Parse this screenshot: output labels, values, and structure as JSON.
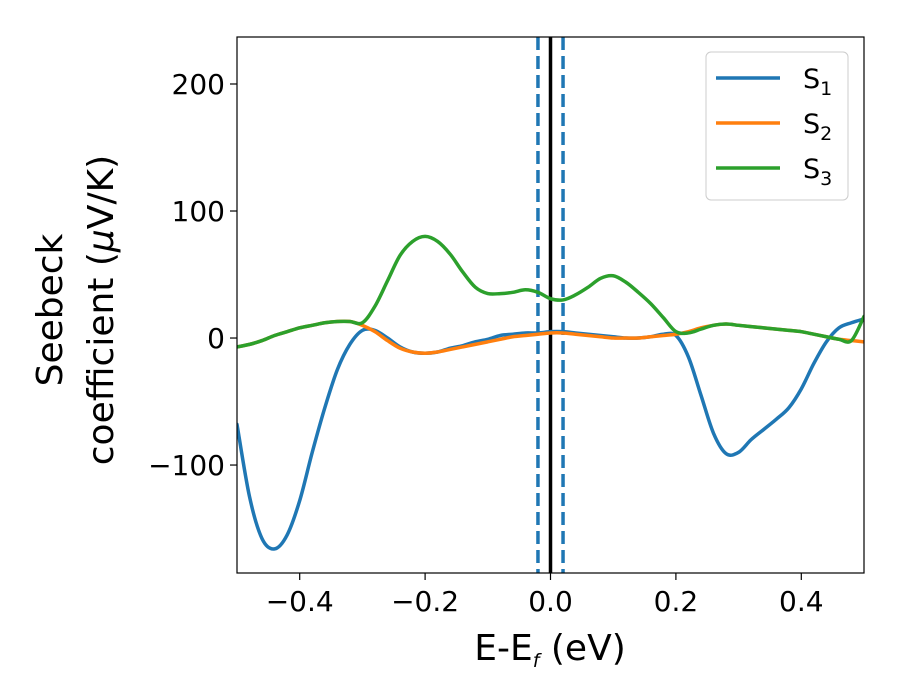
{
  "chart_data": {
    "type": "line",
    "title": "",
    "xlabel": {
      "base": "E-E",
      "sub": "f",
      "unit": " (eV)"
    },
    "ylabel": {
      "line1": "Seebeck",
      "line2_main": "coefficient  (",
      "line2_mu": "μ",
      "line2_unit": "V/K)"
    },
    "xlim": [
      -0.5,
      0.5
    ],
    "ylim": [
      -185,
      237
    ],
    "xticks": [
      -0.4,
      -0.2,
      0.0,
      0.2,
      0.4
    ],
    "xtick_labels": [
      "−0.4",
      "−0.2",
      "0.0",
      "0.2",
      "0.4"
    ],
    "yticks": [
      -100,
      0,
      100,
      200
    ],
    "ytick_labels": [
      "−100",
      "0",
      "100",
      "200"
    ],
    "grid": false,
    "legend_position": "top-right",
    "vlines": [
      {
        "x": 0.0,
        "color": "#000000",
        "style": "solid"
      },
      {
        "x": -0.02,
        "color": "#1f77b4",
        "style": "dashed"
      },
      {
        "x": 0.02,
        "color": "#1f77b4",
        "style": "dashed"
      }
    ],
    "series": [
      {
        "name": "S",
        "sub": "1",
        "color": "#1f77b4",
        "x": [
          -0.5,
          -0.48,
          -0.46,
          -0.44,
          -0.42,
          -0.4,
          -0.38,
          -0.36,
          -0.34,
          -0.32,
          -0.3,
          -0.28,
          -0.26,
          -0.24,
          -0.22,
          -0.2,
          -0.18,
          -0.16,
          -0.14,
          -0.12,
          -0.1,
          -0.08,
          -0.06,
          -0.04,
          -0.02,
          0.0,
          0.02,
          0.04,
          0.06,
          0.08,
          0.1,
          0.12,
          0.14,
          0.16,
          0.18,
          0.2,
          0.22,
          0.24,
          0.26,
          0.28,
          0.3,
          0.32,
          0.34,
          0.36,
          0.38,
          0.4,
          0.42,
          0.44,
          0.46,
          0.48,
          0.5
        ],
        "y": [
          -68,
          -125,
          -158,
          -166,
          -155,
          -128,
          -90,
          -55,
          -25,
          -5,
          6,
          6,
          0,
          -7,
          -11,
          -12,
          -11,
          -8,
          -6,
          -3,
          -1,
          2,
          3,
          4,
          4,
          5,
          5,
          4,
          3,
          2,
          1,
          0,
          0,
          1,
          3,
          2,
          -15,
          -45,
          -75,
          -91,
          -90,
          -80,
          -72,
          -64,
          -55,
          -40,
          -20,
          -3,
          8,
          12,
          15
        ]
      },
      {
        "name": "S",
        "sub": "2",
        "color": "#ff7f0e",
        "x": [
          -0.5,
          -0.48,
          -0.46,
          -0.44,
          -0.42,
          -0.4,
          -0.38,
          -0.36,
          -0.34,
          -0.32,
          -0.3,
          -0.28,
          -0.26,
          -0.24,
          -0.22,
          -0.2,
          -0.18,
          -0.16,
          -0.14,
          -0.12,
          -0.1,
          -0.08,
          -0.06,
          -0.04,
          -0.02,
          0.0,
          0.02,
          0.04,
          0.06,
          0.08,
          0.1,
          0.12,
          0.14,
          0.16,
          0.18,
          0.2,
          0.22,
          0.24,
          0.26,
          0.28,
          0.3,
          0.32,
          0.34,
          0.36,
          0.38,
          0.4,
          0.42,
          0.44,
          0.46,
          0.48,
          0.5
        ],
        "y": [
          -7,
          -5,
          -2,
          2,
          5,
          8,
          10,
          12,
          13,
          13,
          10,
          5,
          -2,
          -8,
          -11,
          -12,
          -11,
          -9,
          -7,
          -5,
          -3,
          -1,
          1,
          2,
          3,
          4,
          4,
          3,
          2,
          1,
          0,
          0,
          0,
          1,
          2,
          3,
          5,
          8,
          10,
          11,
          10,
          9,
          8,
          7,
          6,
          5,
          3,
          1,
          -1,
          -2,
          -3
        ]
      },
      {
        "name": "S",
        "sub": "3",
        "color": "#2ca02c",
        "x": [
          -0.5,
          -0.48,
          -0.46,
          -0.44,
          -0.42,
          -0.4,
          -0.38,
          -0.36,
          -0.34,
          -0.32,
          -0.3,
          -0.28,
          -0.26,
          -0.24,
          -0.22,
          -0.2,
          -0.18,
          -0.16,
          -0.14,
          -0.12,
          -0.1,
          -0.08,
          -0.06,
          -0.04,
          -0.02,
          0.0,
          0.02,
          0.04,
          0.06,
          0.08,
          0.1,
          0.12,
          0.14,
          0.16,
          0.18,
          0.2,
          0.22,
          0.24,
          0.26,
          0.28,
          0.3,
          0.32,
          0.34,
          0.36,
          0.38,
          0.4,
          0.42,
          0.44,
          0.46,
          0.48,
          0.5
        ],
        "y": [
          -7,
          -5,
          -2,
          2,
          5,
          8,
          10,
          12,
          13,
          13,
          12,
          25,
          45,
          65,
          76,
          80,
          76,
          66,
          52,
          40,
          35,
          35,
          36,
          38,
          36,
          31,
          30,
          34,
          40,
          47,
          49,
          44,
          36,
          27,
          16,
          5,
          4,
          7,
          10,
          11,
          10,
          9,
          8,
          7,
          6,
          5,
          3,
          1,
          -1,
          -2,
          17
        ]
      }
    ]
  }
}
